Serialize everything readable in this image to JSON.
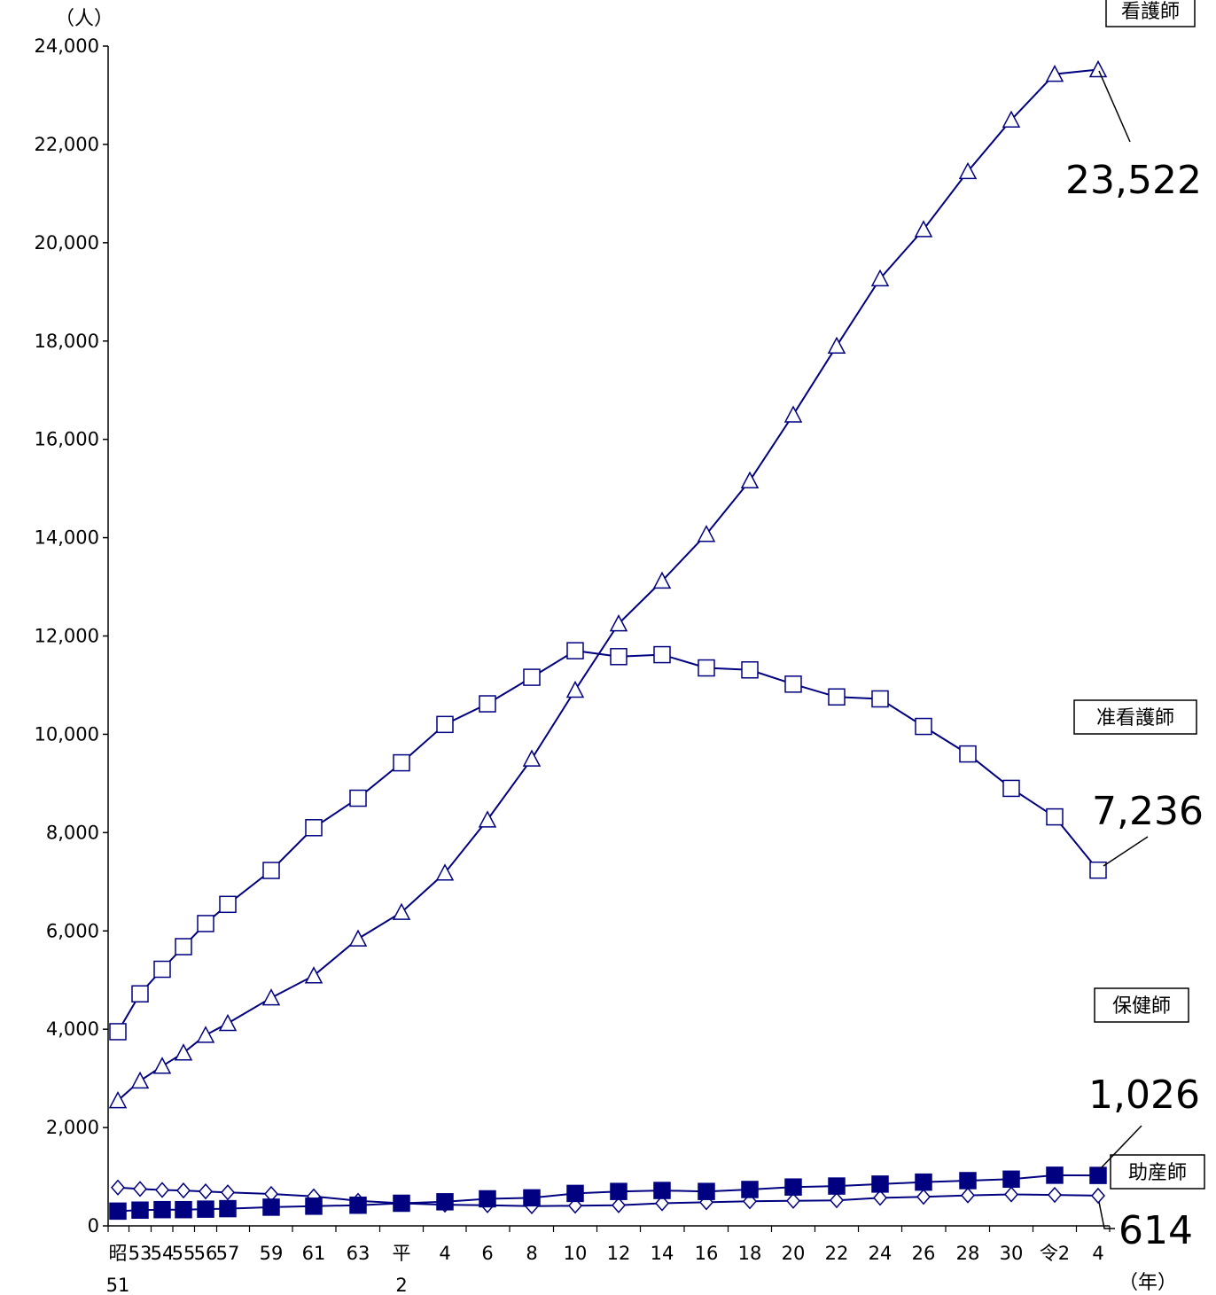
{
  "chart_data": {
    "type": "line",
    "y_unit_label": "（人）",
    "x_unit_label": "（年）",
    "ylim": [
      0,
      24000
    ],
    "yticks": [
      0,
      2000,
      4000,
      6000,
      8000,
      10000,
      12000,
      14000,
      16000,
      18000,
      20000,
      22000,
      24000
    ],
    "ytick_labels": [
      "0",
      "2,000",
      "4,000",
      "6,000",
      "8,000",
      "10,000",
      "12,000",
      "14,000",
      "16,000",
      "18,000",
      "20,000",
      "22,000",
      "24,000"
    ],
    "grid": false,
    "x_tick_labels": [
      [
        "昭",
        "51"
      ],
      [
        "53"
      ],
      [
        "54"
      ],
      [
        "55"
      ],
      [
        "56"
      ],
      [
        "57"
      ],
      [
        "59"
      ],
      [
        "61"
      ],
      [
        "63"
      ],
      [
        "平",
        "2"
      ],
      [
        "4"
      ],
      [
        "6"
      ],
      [
        "8"
      ],
      [
        "10"
      ],
      [
        "12"
      ],
      [
        "14"
      ],
      [
        "16"
      ],
      [
        "18"
      ],
      [
        "20"
      ],
      [
        "22"
      ],
      [
        "24"
      ],
      [
        "26"
      ],
      [
        "28"
      ],
      [
        "30"
      ],
      [
        "令2"
      ],
      [
        "4"
      ]
    ],
    "series": [
      {
        "name": "看護師",
        "marker": "triangle",
        "values": [
          2550,
          2950,
          3250,
          3520,
          3880,
          4120,
          4640,
          5090,
          5840,
          6380,
          7180,
          8260,
          9500,
          10900,
          12250,
          13120,
          14070,
          15160,
          16500,
          17900,
          19270,
          20270,
          21450,
          22500,
          23430,
          23522
        ],
        "end_label": "23,522"
      },
      {
        "name": "准看護師",
        "marker": "square-open",
        "values": [
          3950,
          4720,
          5220,
          5680,
          6150,
          6540,
          7230,
          8100,
          8700,
          9420,
          10200,
          10620,
          11160,
          11700,
          11580,
          11620,
          11350,
          11310,
          11020,
          10760,
          10720,
          10160,
          9600,
          8900,
          8320,
          7236
        ],
        "end_label": "7,236"
      },
      {
        "name": "保健師",
        "marker": "diamond-open",
        "values": [
          780,
          750,
          730,
          720,
          700,
          680,
          650,
          600,
          510,
          460,
          430,
          420,
          400,
          410,
          420,
          460,
          480,
          500,
          510,
          520,
          570,
          590,
          620,
          640,
          630,
          614
        ],
        "end_label": "614"
      },
      {
        "name": "助産師",
        "marker": "square-filled",
        "values": [
          300,
          320,
          330,
          330,
          340,
          350,
          380,
          400,
          420,
          460,
          490,
          550,
          570,
          660,
          700,
          720,
          700,
          740,
          790,
          810,
          850,
          890,
          920,
          950,
          1030,
          1026
        ],
        "end_label": "1,026"
      }
    ],
    "colors": {
      "line": "#000080",
      "axis": "#000000"
    }
  }
}
